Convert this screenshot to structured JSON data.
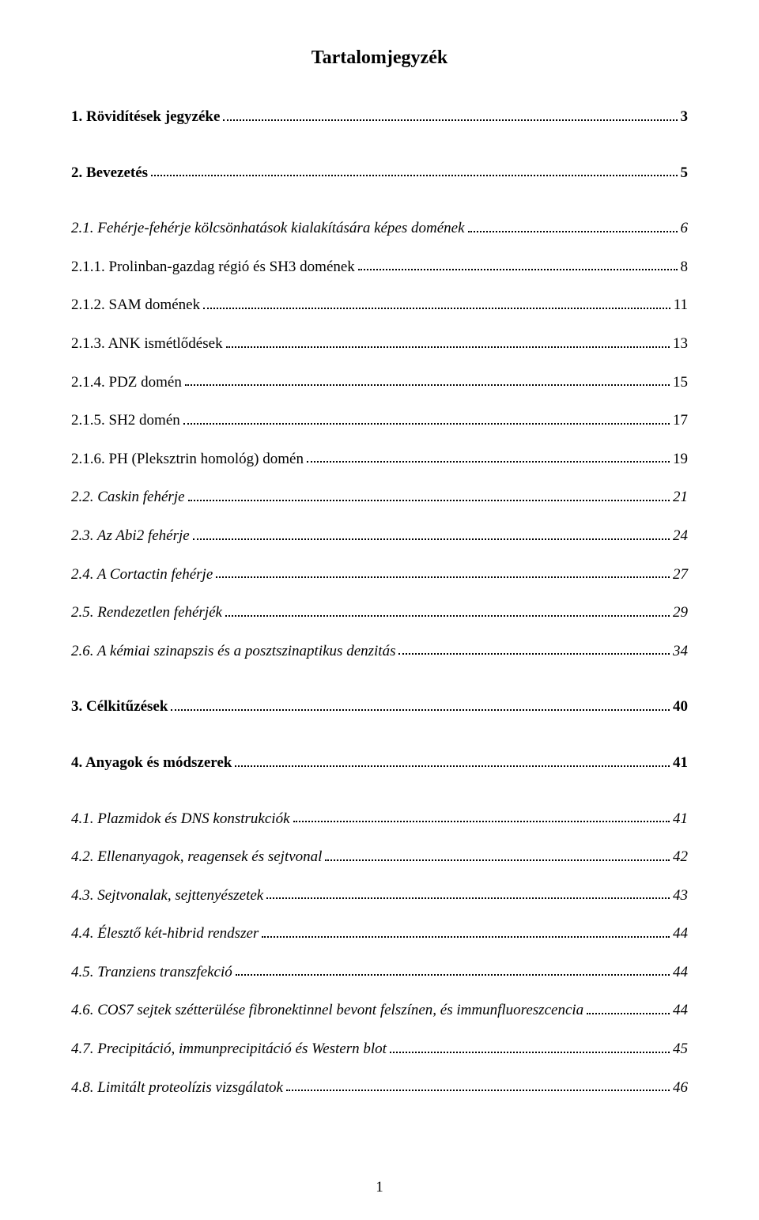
{
  "title": "Tartalomjegyzék",
  "page_number": "1",
  "entries": [
    {
      "label": "1. Rövidítések jegyzéke",
      "page": "3",
      "bold": true,
      "italic": false,
      "gap": false
    },
    {
      "label": "2. Bevezetés",
      "page": "5",
      "bold": true,
      "italic": false,
      "gap": true
    },
    {
      "label": "2.1. Fehérje-fehérje kölcsönhatások kialakítására képes domének",
      "page": "6",
      "bold": false,
      "italic": true,
      "gap": true
    },
    {
      "label": "2.1.1. Prolinban-gazdag régió és SH3 domének",
      "page": "8",
      "bold": false,
      "italic": false,
      "gap": false
    },
    {
      "label": "2.1.2. SAM domének",
      "page": "11",
      "bold": false,
      "italic": false,
      "gap": false
    },
    {
      "label": "2.1.3. ANK ismétlődések",
      "page": "13",
      "bold": false,
      "italic": false,
      "gap": false
    },
    {
      "label": "2.1.4. PDZ domén",
      "page": "15",
      "bold": false,
      "italic": false,
      "gap": false
    },
    {
      "label": "2.1.5. SH2 domén",
      "page": "17",
      "bold": false,
      "italic": false,
      "gap": false
    },
    {
      "label": "2.1.6. PH (Pleksztrin homológ) domén",
      "page": "19",
      "bold": false,
      "italic": false,
      "gap": false
    },
    {
      "label": "2.2. Caskin fehérje",
      "page": "21",
      "bold": false,
      "italic": true,
      "gap": false
    },
    {
      "label": "2.3. Az Abi2 fehérje",
      "page": "24",
      "bold": false,
      "italic": true,
      "gap": false
    },
    {
      "label": "2.4. A Cortactin fehérje",
      "page": "27",
      "bold": false,
      "italic": true,
      "gap": false
    },
    {
      "label": "2.5. Rendezetlen fehérjék",
      "page": "29",
      "bold": false,
      "italic": true,
      "gap": false
    },
    {
      "label": "2.6. A kémiai szinapszis és a posztszinaptikus denzitás",
      "page": "34",
      "bold": false,
      "italic": true,
      "gap": false
    },
    {
      "label": "3. Célkitűzések",
      "page": "40",
      "bold": true,
      "italic": false,
      "gap": true
    },
    {
      "label": "4. Anyagok és módszerek",
      "page": "41",
      "bold": true,
      "italic": false,
      "gap": true
    },
    {
      "label": "4.1. Plazmidok és DNS konstrukciók",
      "page": "41",
      "bold": false,
      "italic": true,
      "gap": true
    },
    {
      "label": "4.2. Ellenanyagok, reagensek és sejtvonal",
      "page": "42",
      "bold": false,
      "italic": true,
      "gap": false
    },
    {
      "label": "4.3. Sejtvonalak, sejttenyészetek",
      "page": "43",
      "bold": false,
      "italic": true,
      "gap": false
    },
    {
      "label": "4.4. Élesztő két-hibrid rendszer",
      "page": "44",
      "bold": false,
      "italic": true,
      "gap": false
    },
    {
      "label": "4.5. Tranziens transzfekció",
      "page": "44",
      "bold": false,
      "italic": true,
      "gap": false
    },
    {
      "label": "4.6. COS7 sejtek szétterülése fibronektinnel bevont felszínen, és immunfluoreszcencia",
      "page": "44",
      "bold": false,
      "italic": true,
      "gap": false
    },
    {
      "label": "4.7. Precipitáció, immunprecipitáció és Western blot",
      "page": "45",
      "bold": false,
      "italic": true,
      "gap": false
    },
    {
      "label": "4.8. Limitált proteolízis vizsgálatok",
      "page": "46",
      "bold": false,
      "italic": true,
      "gap": false
    }
  ]
}
